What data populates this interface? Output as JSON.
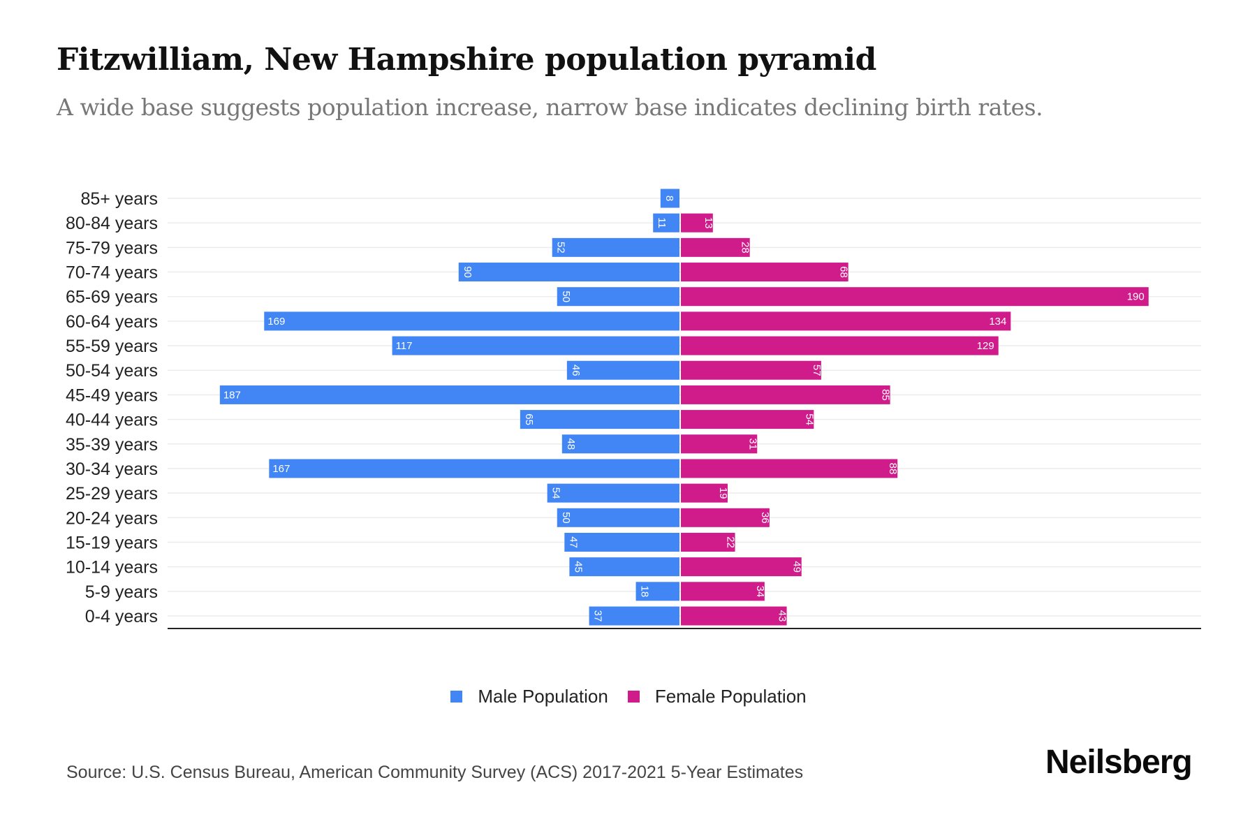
{
  "header": {
    "title": "Fitzwilliam, New Hampshire population pyramid",
    "subtitle": "A wide base suggests population increase, narrow base indicates declining birth rates."
  },
  "chart_data": {
    "type": "bar",
    "orientation": "horizontal-diverging",
    "title": "Fitzwilliam, New Hampshire population pyramid",
    "subtitle": "A wide base suggests population increase, narrow base indicates declining birth rates.",
    "xlabel": "",
    "ylabel": "",
    "categories": [
      "85+ years",
      "80-84 years",
      "75-79 years",
      "70-74 years",
      "65-69 years",
      "60-64 years",
      "55-59 years",
      "50-54 years",
      "45-49 years",
      "40-44 years",
      "35-39 years",
      "30-34 years",
      "25-29 years",
      "20-24 years",
      "15-19 years",
      "10-14 years",
      "5-9 years",
      "0-4 years"
    ],
    "series": [
      {
        "name": "Male Population",
        "color": "#4285F4",
        "side": "left",
        "values": [
          8,
          11,
          52,
          90,
          50,
          169,
          117,
          46,
          187,
          65,
          48,
          167,
          54,
          50,
          47,
          45,
          18,
          37
        ]
      },
      {
        "name": "Female Population",
        "color": "#D01C8B",
        "side": "right",
        "values": [
          0,
          13,
          28,
          68,
          190,
          134,
          129,
          57,
          85,
          54,
          31,
          88,
          19,
          36,
          22,
          49,
          34,
          43
        ]
      }
    ],
    "xlim": [
      -210,
      210
    ],
    "grid": true,
    "legend_position": "bottom-center",
    "data_labels": true
  },
  "legend": {
    "items": [
      {
        "label": "Male Population",
        "color": "#4285F4"
      },
      {
        "label": "Female Population",
        "color": "#D01C8B"
      }
    ]
  },
  "footer": {
    "source": "Source: U.S. Census Bureau, American Community Survey (ACS) 2017-2021 5-Year Estimates",
    "logo": "Neilsberg"
  }
}
